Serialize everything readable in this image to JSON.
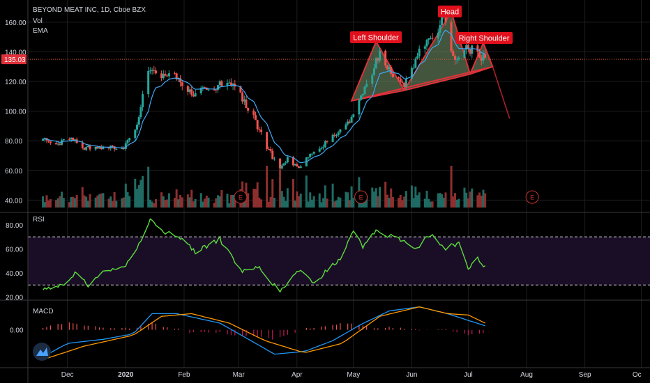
{
  "header": {
    "symbol": "BEYOND MEAT INC, 1D, Cboe BZX",
    "vol": "Vol",
    "ema": "EMA"
  },
  "annotations": {
    "left_shoulder": "Left Shoulder",
    "head": "Head",
    "right_shoulder": "Right Shoulder",
    "earnings_marker": "E"
  },
  "price_label": "135.03",
  "colors": {
    "background": "#000000",
    "up": "#26a69a",
    "down": "#ef5350",
    "ema": "#3fa9f5",
    "rsi": "#5cdd3d",
    "macd_line": "#2196f3",
    "signal_line": "#ff9800",
    "pattern_fill": "#7a9a6e",
    "pattern_stroke": "#e0313a",
    "label_bg": "#e0101c",
    "rsi_band": "#1a0e26"
  },
  "chart_data": [
    {
      "type": "candlestick",
      "panel": "price",
      "ylim": [
        35,
        175
      ],
      "yticks": [
        "40.00",
        "60.00",
        "80.00",
        "100.00",
        "120.00",
        "140.00",
        "160.00"
      ],
      "xticks": [
        "Dec",
        "2020",
        "Feb",
        "Mar",
        "Apr",
        "May",
        "Jun",
        "Jul",
        "Aug",
        "Sep",
        "Oc"
      ],
      "last_price": 135.03,
      "close_path": [
        [
          "2019-11-18",
          80
        ],
        [
          "2019-11-28",
          79
        ],
        [
          "2019-12-04",
          82
        ],
        [
          "2019-12-10",
          75
        ],
        [
          "2019-12-20",
          76
        ],
        [
          "2019-12-31",
          76
        ],
        [
          "2020-01-06",
          86
        ],
        [
          "2020-01-10",
          110
        ],
        [
          "2020-01-13",
          127
        ],
        [
          "2020-01-20",
          122
        ],
        [
          "2020-01-27",
          124
        ],
        [
          "2020-02-06",
          111
        ],
        [
          "2020-02-18",
          117
        ],
        [
          "2020-02-24",
          122
        ],
        [
          "2020-03-02",
          110
        ],
        [
          "2020-03-09",
          95
        ],
        [
          "2020-03-16",
          76
        ],
        [
          "2020-03-23",
          60
        ],
        [
          "2020-03-27",
          68
        ],
        [
          "2020-04-02",
          62
        ],
        [
          "2020-04-10",
          74
        ],
        [
          "2020-04-17",
          79
        ],
        [
          "2020-04-24",
          87
        ],
        [
          "2020-05-01",
          97
        ],
        [
          "2020-05-08",
          120
        ],
        [
          "2020-05-15",
          138
        ],
        [
          "2020-05-22",
          125
        ],
        [
          "2020-05-28",
          118
        ],
        [
          "2020-06-05",
          140
        ],
        [
          "2020-06-11",
          150
        ],
        [
          "2020-06-18",
          162
        ],
        [
          "2020-06-24",
          133
        ],
        [
          "2020-06-30",
          144
        ],
        [
          "2020-07-06",
          138
        ],
        [
          "2020-07-10",
          135
        ]
      ],
      "ema_series": "EMA",
      "volume_series": "Vol",
      "earnings": [
        "2020-03-02",
        "2020-05-05",
        "2020-08-04"
      ],
      "pattern": {
        "left_shoulder": [
          [
            "2020-04-30",
            107
          ],
          [
            "2020-05-13",
            147
          ],
          [
            "2020-05-28",
            114
          ]
        ],
        "head": [
          [
            "2020-05-28",
            114
          ],
          [
            "2020-06-22",
            167
          ],
          [
            "2020-07-02",
            125
          ]
        ],
        "right_shoulder": [
          [
            "2020-07-02",
            125
          ],
          [
            "2020-07-09",
            146
          ],
          [
            "2020-07-14",
            130
          ]
        ],
        "neckline": [
          [
            "2020-04-30",
            107
          ],
          [
            "2020-07-14",
            130
          ]
        ],
        "projection": [
          [
            "2020-07-14",
            130
          ],
          [
            "2020-07-23",
            95
          ]
        ]
      }
    },
    {
      "type": "line",
      "panel": "RSI",
      "ylim": [
        18,
        88
      ],
      "yticks": [
        "20.00",
        "40.00",
        "60.00",
        "80.00"
      ],
      "bands": [
        30,
        70
      ],
      "path": [
        [
          "2019-11-18",
          27
        ],
        [
          "2019-11-28",
          30
        ],
        [
          "2019-12-05",
          40
        ],
        [
          "2019-12-12",
          30
        ],
        [
          "2019-12-20",
          40
        ],
        [
          "2019-12-31",
          44
        ],
        [
          "2020-01-08",
          64
        ],
        [
          "2020-01-14",
          83
        ],
        [
          "2020-01-22",
          74
        ],
        [
          "2020-01-28",
          72
        ],
        [
          "2020-02-07",
          57
        ],
        [
          "2020-02-20",
          68
        ],
        [
          "2020-03-02",
          42
        ],
        [
          "2020-03-12",
          45
        ],
        [
          "2020-03-23",
          24
        ],
        [
          "2020-04-02",
          43
        ],
        [
          "2020-04-10",
          32
        ],
        [
          "2020-04-24",
          52
        ],
        [
          "2020-05-01",
          76
        ],
        [
          "2020-05-06",
          62
        ],
        [
          "2020-05-13",
          75
        ],
        [
          "2020-05-27",
          67
        ],
        [
          "2020-06-03",
          60
        ],
        [
          "2020-06-11",
          72
        ],
        [
          "2020-06-18",
          60
        ],
        [
          "2020-06-26",
          65
        ],
        [
          "2020-07-01",
          42
        ],
        [
          "2020-07-06",
          52
        ],
        [
          "2020-07-10",
          44
        ]
      ]
    },
    {
      "type": "line",
      "panel": "MACD",
      "name": "MACD",
      "ylim": [
        -28,
        22
      ],
      "yticks": [
        "0.00"
      ],
      "macd": [
        [
          "2019-11-18",
          -20
        ],
        [
          "2019-12-01",
          -10
        ],
        [
          "2019-12-20",
          -7
        ],
        [
          "2020-01-05",
          -3
        ],
        [
          "2020-01-15",
          12
        ],
        [
          "2020-01-28",
          12
        ],
        [
          "2020-02-20",
          5
        ],
        [
          "2020-03-05",
          -6
        ],
        [
          "2020-03-20",
          -18
        ],
        [
          "2020-04-05",
          -16
        ],
        [
          "2020-04-20",
          -8
        ],
        [
          "2020-05-05",
          4
        ],
        [
          "2020-05-20",
          14
        ],
        [
          "2020-06-05",
          17
        ],
        [
          "2020-06-20",
          12
        ],
        [
          "2020-07-01",
          7
        ],
        [
          "2020-07-10",
          3
        ]
      ],
      "signal": [
        [
          "2019-11-18",
          -22
        ],
        [
          "2019-12-10",
          -12
        ],
        [
          "2020-01-05",
          -4
        ],
        [
          "2020-01-20",
          10
        ],
        [
          "2020-02-05",
          12
        ],
        [
          "2020-02-25",
          5
        ],
        [
          "2020-03-15",
          -8
        ],
        [
          "2020-04-05",
          -17
        ],
        [
          "2020-04-25",
          -10
        ],
        [
          "2020-05-15",
          10
        ],
        [
          "2020-06-05",
          17
        ],
        [
          "2020-06-20",
          12
        ],
        [
          "2020-07-01",
          11
        ],
        [
          "2020-07-10",
          5
        ]
      ],
      "histogram": "auto"
    }
  ]
}
